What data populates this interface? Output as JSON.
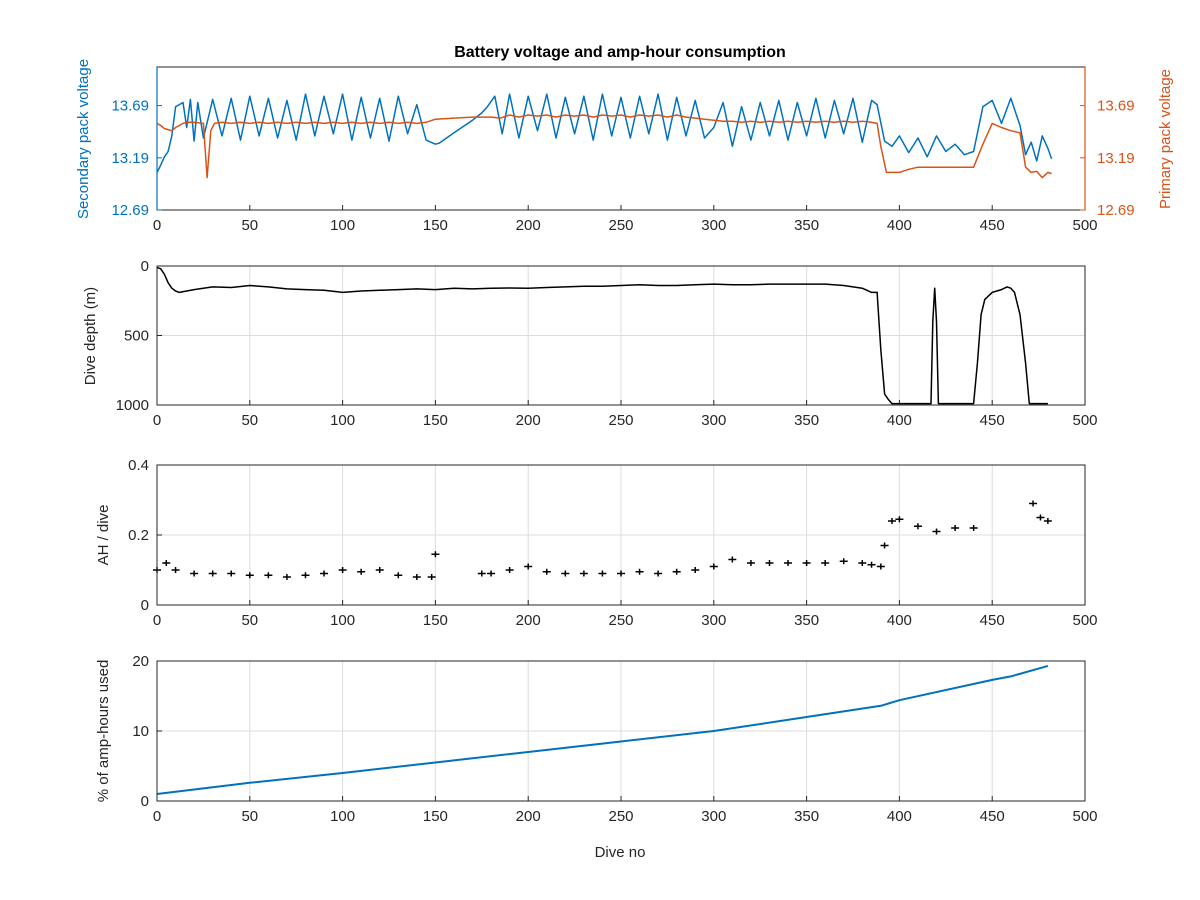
{
  "colors": {
    "secondary": "#0072BD",
    "primary": "#D95319",
    "black": "#000000",
    "axis": "#262626",
    "grid": "#dcdcdc"
  },
  "chart_data": [
    {
      "type": "line",
      "title": "Battery voltage and amp-hour consumption",
      "xlabel": "",
      "xlim": [
        0,
        500
      ],
      "xticks": [
        0,
        50,
        100,
        150,
        200,
        250,
        300,
        350,
        400,
        450,
        500
      ],
      "ylabel_left": "Secondary pack voltage",
      "ylabel_right": "Primary pack voltage",
      "ylim": [
        12.69,
        13.69
      ],
      "ylim_visible": [
        12.69,
        14.06
      ],
      "yticks": [
        "12.69",
        "13.19",
        "13.69"
      ],
      "grid": false,
      "series": [
        {
          "axis": "left",
          "color": "#0072BD",
          "x": [
            0,
            2,
            4,
            6,
            8,
            10,
            12,
            14,
            16,
            18,
            20,
            22,
            25,
            30,
            35,
            40,
            45,
            50,
            55,
            60,
            65,
            70,
            75,
            80,
            85,
            90,
            95,
            100,
            105,
            110,
            115,
            120,
            125,
            130,
            135,
            140,
            145,
            150,
            152,
            160,
            170,
            175,
            178,
            182,
            186,
            190,
            195,
            200,
            205,
            210,
            215,
            220,
            225,
            230,
            235,
            240,
            245,
            250,
            255,
            260,
            265,
            270,
            275,
            280,
            285,
            290,
            295,
            300,
            305,
            310,
            315,
            320,
            325,
            330,
            335,
            340,
            345,
            350,
            355,
            360,
            365,
            370,
            375,
            380,
            385,
            388,
            392,
            396,
            400,
            405,
            410,
            415,
            420,
            425,
            430,
            435,
            440,
            445,
            450,
            455,
            460,
            465,
            468,
            471,
            474,
            477,
            480,
            482
          ],
          "y": [
            13.05,
            13.12,
            13.2,
            13.25,
            13.4,
            13.68,
            13.7,
            13.72,
            13.48,
            13.75,
            13.35,
            13.72,
            13.38,
            13.75,
            13.4,
            13.76,
            13.36,
            13.78,
            13.4,
            13.76,
            13.38,
            13.74,
            13.36,
            13.8,
            13.4,
            13.78,
            13.42,
            13.8,
            13.36,
            13.77,
            13.38,
            13.76,
            13.35,
            13.78,
            13.42,
            13.7,
            13.36,
            13.32,
            13.33,
            13.43,
            13.55,
            13.62,
            13.68,
            13.78,
            13.42,
            13.8,
            13.38,
            13.78,
            13.45,
            13.8,
            13.38,
            13.77,
            13.42,
            13.78,
            13.36,
            13.8,
            13.4,
            13.77,
            13.38,
            13.78,
            13.42,
            13.8,
            13.36,
            13.77,
            13.4,
            13.74,
            13.38,
            13.48,
            13.72,
            13.3,
            13.68,
            13.36,
            13.72,
            13.4,
            13.74,
            13.36,
            13.72,
            13.4,
            13.76,
            13.38,
            13.74,
            13.42,
            13.76,
            13.34,
            13.74,
            13.7,
            13.35,
            13.3,
            13.4,
            13.24,
            13.38,
            13.2,
            13.4,
            13.25,
            13.32,
            13.22,
            13.25,
            13.68,
            13.74,
            13.52,
            13.76,
            13.5,
            13.22,
            13.34,
            13.16,
            13.4,
            13.28,
            13.18
          ]
        },
        {
          "axis": "right",
          "color": "#D95319",
          "x": [
            0,
            2,
            4,
            6,
            8,
            10,
            12,
            14,
            16,
            20,
            25,
            27,
            29,
            31,
            35,
            40,
            45,
            50,
            55,
            60,
            65,
            70,
            75,
            80,
            85,
            90,
            95,
            100,
            105,
            110,
            115,
            120,
            125,
            130,
            135,
            140,
            145,
            150,
            160,
            170,
            180,
            185,
            190,
            195,
            200,
            205,
            210,
            215,
            220,
            225,
            230,
            235,
            240,
            245,
            250,
            255,
            260,
            265,
            270,
            275,
            280,
            285,
            290,
            295,
            300,
            305,
            310,
            315,
            320,
            325,
            330,
            335,
            340,
            345,
            350,
            355,
            360,
            365,
            370,
            375,
            380,
            385,
            388,
            390,
            393,
            396,
            398,
            400,
            405,
            410,
            415,
            420,
            425,
            430,
            435,
            440,
            445,
            450,
            455,
            460,
            465,
            468,
            471,
            474,
            477,
            480,
            482
          ],
          "y": [
            13.52,
            13.5,
            13.47,
            13.46,
            13.45,
            13.48,
            13.5,
            13.52,
            13.53,
            13.53,
            13.52,
            13.0,
            13.45,
            13.52,
            13.53,
            13.52,
            13.53,
            13.52,
            13.53,
            13.52,
            13.53,
            13.52,
            13.53,
            13.52,
            13.53,
            13.52,
            13.53,
            13.52,
            13.53,
            13.52,
            13.53,
            13.52,
            13.53,
            13.52,
            13.53,
            13.52,
            13.53,
            13.56,
            13.57,
            13.58,
            13.58,
            13.57,
            13.6,
            13.58,
            13.6,
            13.59,
            13.6,
            13.58,
            13.6,
            13.59,
            13.6,
            13.58,
            13.6,
            13.59,
            13.6,
            13.58,
            13.6,
            13.59,
            13.6,
            13.58,
            13.6,
            13.58,
            13.57,
            13.56,
            13.55,
            13.54,
            13.54,
            13.53,
            13.54,
            13.53,
            13.54,
            13.53,
            13.54,
            13.53,
            13.54,
            13.53,
            13.54,
            13.53,
            13.54,
            13.53,
            13.54,
            13.53,
            13.52,
            13.3,
            13.05,
            13.05,
            13.05,
            13.05,
            13.08,
            13.1,
            13.1,
            13.1,
            13.1,
            13.1,
            13.1,
            13.1,
            13.32,
            13.52,
            13.48,
            13.45,
            13.43,
            13.1,
            13.05,
            13.06,
            13.0,
            13.05,
            13.04
          ]
        }
      ]
    },
    {
      "type": "line",
      "xlim": [
        0,
        500
      ],
      "xticks": [
        0,
        50,
        100,
        150,
        200,
        250,
        300,
        350,
        400,
        450,
        500
      ],
      "ylabel": "Dive depth (m)",
      "ylim": [
        0,
        1000
      ],
      "y_reversed": true,
      "yticks": [
        0,
        500,
        1000
      ],
      "grid": true,
      "series": [
        {
          "color": "#000000",
          "x": [
            0,
            2,
            4,
            6,
            8,
            10,
            12,
            20,
            30,
            40,
            50,
            60,
            70,
            80,
            90,
            100,
            110,
            120,
            130,
            140,
            150,
            160,
            170,
            180,
            190,
            200,
            210,
            220,
            230,
            240,
            250,
            260,
            270,
            280,
            290,
            300,
            310,
            320,
            330,
            340,
            350,
            360,
            370,
            380,
            385,
            388,
            390,
            392,
            394,
            396,
            400,
            410,
            415,
            417,
            418,
            419,
            420,
            421,
            423,
            430,
            440,
            442,
            444,
            446,
            450,
            455,
            458,
            460,
            462,
            465,
            468,
            470,
            480
          ],
          "y": [
            10,
            20,
            60,
            120,
            160,
            180,
            190,
            170,
            150,
            155,
            140,
            150,
            165,
            170,
            175,
            190,
            180,
            175,
            170,
            165,
            170,
            160,
            165,
            160,
            158,
            160,
            155,
            150,
            145,
            145,
            140,
            135,
            140,
            140,
            135,
            130,
            135,
            135,
            130,
            130,
            130,
            130,
            140,
            160,
            190,
            190,
            600,
            920,
            960,
            990,
            990,
            990,
            990,
            990,
            400,
            160,
            400,
            990,
            990,
            990,
            990,
            700,
            350,
            240,
            190,
            170,
            150,
            160,
            190,
            350,
            700,
            990,
            990
          ]
        }
      ]
    },
    {
      "type": "scatter",
      "xlim": [
        0,
        500
      ],
      "xticks": [
        0,
        50,
        100,
        150,
        200,
        250,
        300,
        350,
        400,
        450,
        500
      ],
      "ylabel": "AH / dive",
      "ylim": [
        0,
        0.4
      ],
      "yticks": [
        "0",
        "0.2",
        "0.4"
      ],
      "grid": true,
      "series": [
        {
          "color": "#000000",
          "x": [
            0,
            5,
            10,
            20,
            30,
            40,
            50,
            60,
            70,
            80,
            90,
            100,
            110,
            120,
            130,
            140,
            148,
            150,
            175,
            180,
            190,
            200,
            210,
            220,
            230,
            240,
            250,
            260,
            270,
            280,
            290,
            300,
            310,
            320,
            330,
            340,
            350,
            360,
            370,
            380,
            385,
            390,
            392,
            396,
            400,
            410,
            420,
            430,
            440,
            472,
            476,
            480
          ],
          "y": [
            0.1,
            0.12,
            0.1,
            0.09,
            0.09,
            0.09,
            0.085,
            0.085,
            0.08,
            0.085,
            0.09,
            0.1,
            0.095,
            0.1,
            0.085,
            0.08,
            0.08,
            0.145,
            0.09,
            0.09,
            0.1,
            0.11,
            0.095,
            0.09,
            0.09,
            0.09,
            0.09,
            0.095,
            0.09,
            0.095,
            0.1,
            0.11,
            0.13,
            0.12,
            0.12,
            0.12,
            0.12,
            0.12,
            0.125,
            0.12,
            0.115,
            0.11,
            0.17,
            0.24,
            0.245,
            0.225,
            0.21,
            0.22,
            0.22,
            0.29,
            0.25,
            0.24
          ]
        }
      ]
    },
    {
      "type": "line",
      "xlabel": "Dive no",
      "xlim": [
        0,
        500
      ],
      "xticks": [
        0,
        50,
        100,
        150,
        200,
        250,
        300,
        350,
        400,
        450,
        500
      ],
      "ylabel": "% of amp-hours used",
      "ylim": [
        0,
        20
      ],
      "yticks": [
        0,
        10,
        20
      ],
      "grid": true,
      "series": [
        {
          "color": "#0072BD",
          "x": [
            0,
            50,
            100,
            150,
            200,
            250,
            300,
            350,
            390,
            400,
            450,
            460,
            480
          ],
          "y": [
            1,
            2.6,
            4,
            5.5,
            7,
            8.5,
            10,
            12,
            13.6,
            14.4,
            17.3,
            17.8,
            19.3
          ]
        }
      ]
    }
  ]
}
